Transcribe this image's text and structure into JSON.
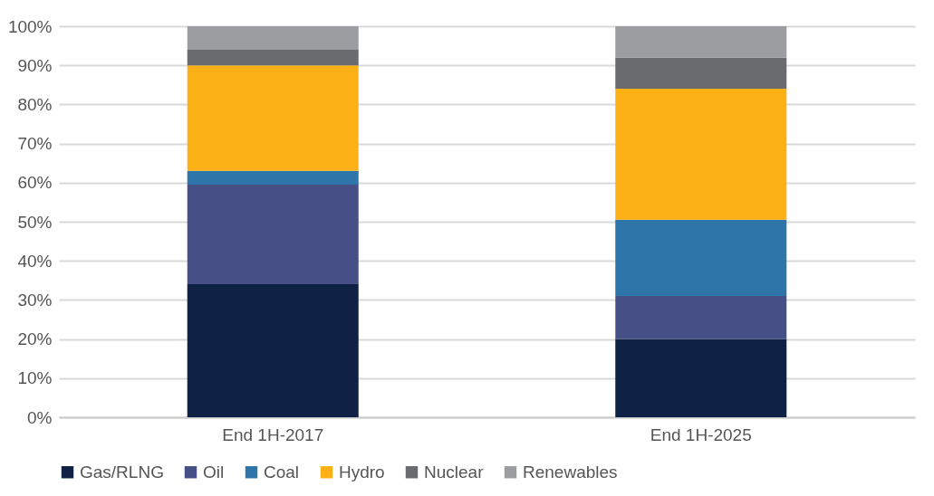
{
  "chart_data": {
    "type": "bar",
    "stacked": true,
    "categories": [
      "End 1H-2017",
      "End 1H-2025"
    ],
    "series": [
      {
        "name": "Gas/RLNG",
        "color": "#0f2144",
        "values": [
          34,
          20
        ]
      },
      {
        "name": "Oil",
        "color": "#465087",
        "values": [
          25.5,
          11
        ]
      },
      {
        "name": "Coal",
        "color": "#2e75aa",
        "values": [
          3.5,
          19.5
        ]
      },
      {
        "name": "Hydro",
        "color": "#fbb116",
        "values": [
          27,
          33.5
        ]
      },
      {
        "name": "Nuclear",
        "color": "#6a6b6f",
        "values": [
          4,
          8
        ]
      },
      {
        "name": "Renewables",
        "color": "#9c9da1",
        "values": [
          6,
          8
        ]
      }
    ],
    "ylim": [
      0,
      100
    ],
    "yticks": [
      {
        "value": 0,
        "label": "0%"
      },
      {
        "value": 10,
        "label": "10%"
      },
      {
        "value": 20,
        "label": "20%"
      },
      {
        "value": 30,
        "label": "30%"
      },
      {
        "value": 40,
        "label": "40%"
      },
      {
        "value": 50,
        "label": "50%"
      },
      {
        "value": 60,
        "label": "60%"
      },
      {
        "value": 70,
        "label": "70%"
      },
      {
        "value": 80,
        "label": "80%"
      },
      {
        "value": 90,
        "label": "90%"
      },
      {
        "value": 100,
        "label": "100%"
      }
    ],
    "grid": "y",
    "legend": "bottom"
  }
}
